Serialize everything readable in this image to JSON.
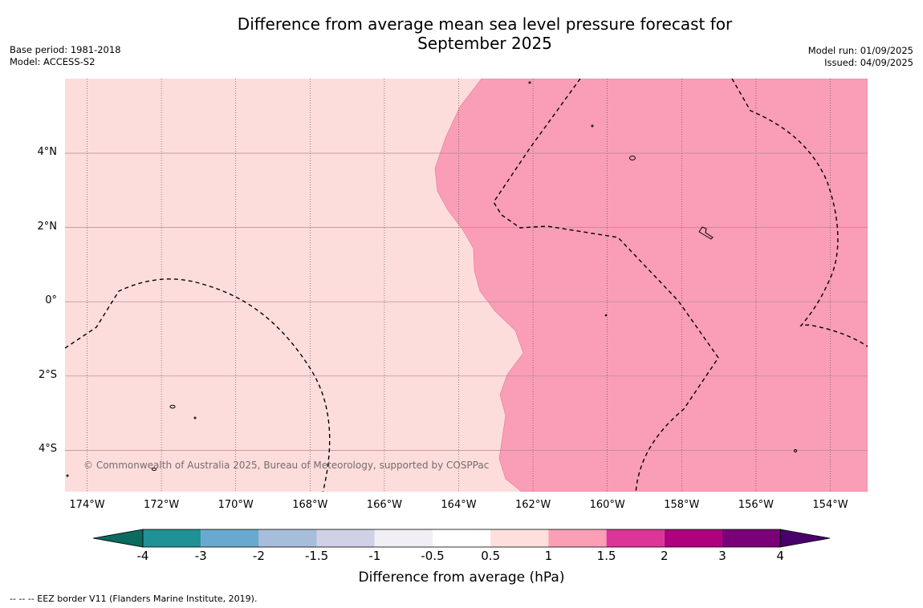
{
  "title": {
    "line1": "Difference from average mean sea level pressure forecast for",
    "line2": "September 2025"
  },
  "meta_left": {
    "base_period": "Base period: 1981-2018",
    "model": "Model: ACCESS-S2"
  },
  "meta_right": {
    "model_run": "Model run: 01/09/2025",
    "issued": "Issued: 04/09/2025"
  },
  "map": {
    "copyright": "© Commonwealth of Australia 2025, Bureau of Meteorology, supported by COSPPac",
    "lon_labels": [
      "174°W",
      "172°W",
      "170°W",
      "168°W",
      "166°W",
      "164°W",
      "162°W",
      "160°W",
      "158°W",
      "156°W",
      "154°W"
    ],
    "lat_labels": [
      "4°N",
      "2°N",
      "0°",
      "2°S",
      "4°S"
    ],
    "fill_colors": {
      "background_class": "#fcdddc",
      "anomaly_1_to_1.5": "#f99eb6"
    }
  },
  "colorbar": {
    "title": "Difference from average (hPa)",
    "tick_labels": [
      "-4",
      "-3",
      "-2",
      "-1.5",
      "-1",
      "-0.5",
      "0.5",
      "1",
      "1.5",
      "2",
      "3",
      "4"
    ],
    "colors": [
      "#0a6b5e",
      "#1f9296",
      "#69a9cf",
      "#a6bddb",
      "#d0d1e6",
      "#f1eef6",
      "#ffffff",
      "#fde0dd",
      "#fa9fb5",
      "#dd3497",
      "#ae017e",
      "#7a0177",
      "#49006a"
    ]
  },
  "footer": "--  --  -- EEZ border V11 (Flanders Marine Institute, 2019)."
}
